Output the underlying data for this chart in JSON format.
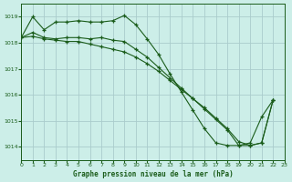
{
  "title": "Graphe pression niveau de la mer (hPa)",
  "bg_color": "#cceee8",
  "grid_color": "#aacccc",
  "line_color": "#1a5c1a",
  "xlim": [
    0,
    23
  ],
  "ylim": [
    1013.5,
    1019.5
  ],
  "yticks": [
    1014,
    1015,
    1016,
    1017,
    1018,
    1019
  ],
  "xticks": [
    0,
    1,
    2,
    3,
    4,
    5,
    6,
    7,
    8,
    9,
    10,
    11,
    12,
    13,
    14,
    15,
    16,
    17,
    18,
    19,
    20,
    21,
    22,
    23
  ],
  "s1x": [
    0,
    1,
    2,
    3,
    4,
    5,
    6,
    7,
    8,
    9,
    10,
    11,
    12,
    13,
    14,
    15,
    16,
    17,
    18,
    19,
    20,
    21,
    22
  ],
  "s1y": [
    1018.2,
    1019.0,
    1018.5,
    1018.8,
    1018.8,
    1018.85,
    1018.8,
    1018.8,
    1018.85,
    1019.05,
    1018.7,
    1018.15,
    1017.55,
    1016.8,
    1016.1,
    1015.4,
    1014.7,
    1014.15,
    1014.05,
    1014.05,
    1014.15,
    1015.15,
    1015.8
  ],
  "s2x": [
    0,
    1,
    2,
    3,
    4,
    5,
    6,
    7,
    8,
    9,
    10,
    11,
    12,
    13,
    14,
    15,
    16,
    17,
    18,
    19,
    20,
    21,
    22
  ],
  "s2y": [
    1018.2,
    1018.4,
    1018.2,
    1018.15,
    1018.2,
    1018.2,
    1018.15,
    1018.2,
    1018.1,
    1018.05,
    1017.75,
    1017.45,
    1017.05,
    1016.65,
    1016.25,
    1015.85,
    1015.45,
    1015.05,
    1014.65,
    1014.05,
    1014.05,
    1014.15,
    1015.8
  ],
  "s3x": [
    0,
    1,
    2,
    3,
    4,
    5,
    6,
    7,
    8,
    9,
    10,
    11,
    12,
    13,
    14,
    15,
    16,
    17,
    18,
    19,
    20,
    21,
    22
  ],
  "s3y": [
    1018.2,
    1018.25,
    1018.15,
    1018.1,
    1018.05,
    1018.05,
    1017.95,
    1017.85,
    1017.75,
    1017.65,
    1017.45,
    1017.2,
    1016.9,
    1016.55,
    1016.2,
    1015.85,
    1015.5,
    1015.1,
    1014.7,
    1014.2,
    1014.05,
    1014.15,
    1015.8
  ]
}
